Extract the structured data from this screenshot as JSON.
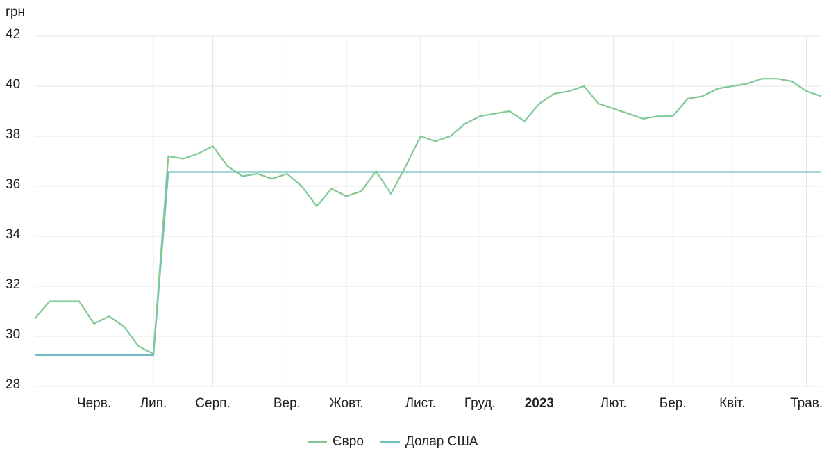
{
  "chart_data": {
    "type": "line",
    "y_label": "грн",
    "categories": [
      null,
      null,
      null,
      null,
      "Черв.",
      null,
      null,
      null,
      "Лип.",
      null,
      null,
      null,
      "Серп.",
      null,
      null,
      null,
      null,
      "Вер.",
      null,
      null,
      null,
      "Жовт.",
      null,
      null,
      null,
      null,
      "Лист.",
      null,
      null,
      null,
      "Груд.",
      null,
      null,
      null,
      "2023",
      null,
      null,
      null,
      null,
      "Лют.",
      null,
      null,
      null,
      "Бер.",
      null,
      null,
      null,
      "Квіт.",
      null,
      null,
      null,
      null,
      "Трав.",
      null
    ],
    "series": [
      {
        "name": "Євро",
        "color": "#7fc995",
        "values": [
          30.7,
          31.4,
          31.4,
          31.4,
          30.5,
          30.8,
          30.4,
          29.6,
          29.3,
          37.2,
          37.1,
          37.3,
          37.6,
          36.8,
          36.4,
          36.5,
          36.3,
          36.5,
          36.0,
          35.2,
          35.9,
          35.6,
          35.8,
          36.6,
          35.7,
          36.8,
          38.0,
          37.8,
          38.0,
          38.5,
          38.8,
          38.9,
          39.0,
          38.6,
          39.3,
          39.7,
          39.8,
          40.0,
          39.3,
          39.1,
          38.9,
          38.7,
          38.8,
          38.8,
          39.5,
          39.6,
          39.9,
          40.0,
          40.1,
          40.3,
          40.3,
          40.2,
          39.8,
          39.6
        ]
      },
      {
        "name": "Долар США",
        "color": "#72bcc4",
        "values": [
          29.25,
          29.25,
          29.25,
          29.25,
          29.25,
          29.25,
          29.25,
          29.25,
          29.25,
          36.57,
          36.57,
          36.57,
          36.57,
          36.57,
          36.57,
          36.57,
          36.57,
          36.57,
          36.57,
          36.57,
          36.57,
          36.57,
          36.57,
          36.57,
          36.57,
          36.57,
          36.57,
          36.57,
          36.57,
          36.57,
          36.57,
          36.57,
          36.57,
          36.57,
          36.57,
          36.57,
          36.57,
          36.57,
          36.57,
          36.57,
          36.57,
          36.57,
          36.57,
          36.57,
          36.57,
          36.57,
          36.57,
          36.57,
          36.57,
          36.57,
          36.57,
          36.57,
          36.57,
          36.57
        ]
      }
    ],
    "ylim": [
      28,
      42
    ],
    "yticks": [
      28,
      30,
      32,
      34,
      36,
      38,
      40,
      42
    ],
    "grid": true
  }
}
